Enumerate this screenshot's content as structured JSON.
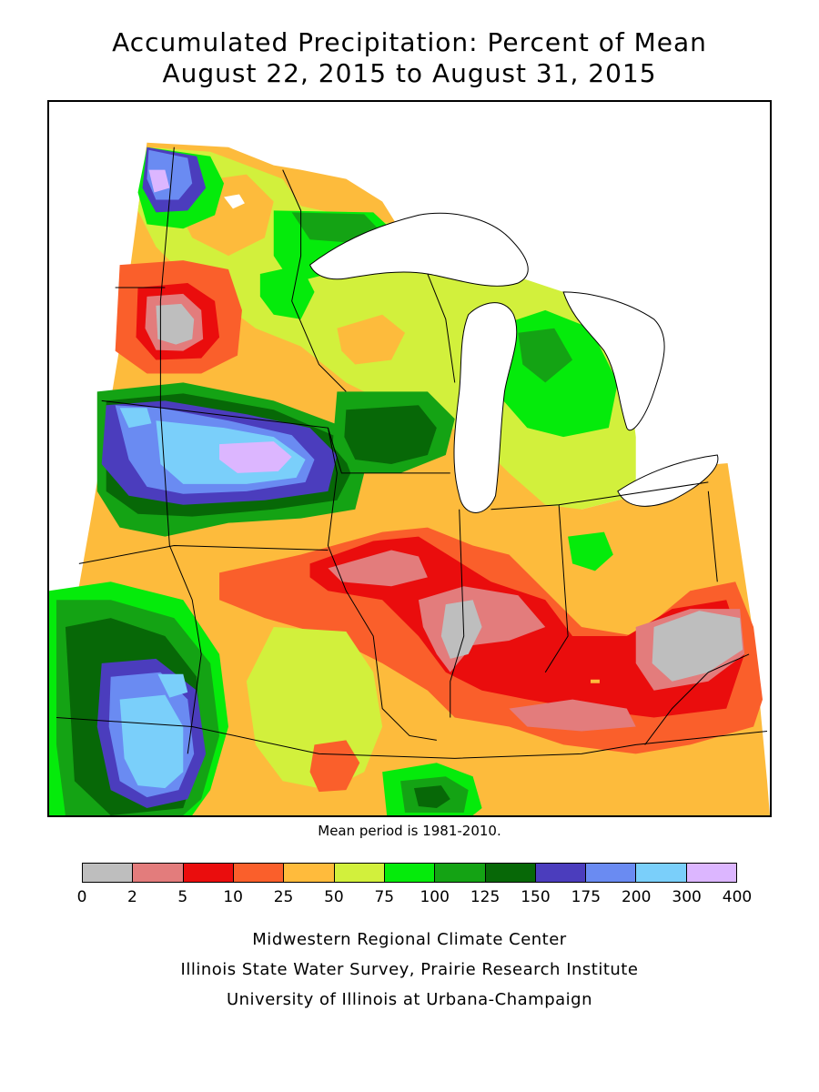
{
  "title": {
    "line1": "Accumulated Precipitation: Percent of Mean",
    "line2": "August 22, 2015 to August 31, 2015"
  },
  "mean_note": "Mean period is 1981-2010.",
  "legend": {
    "ticks": [
      "0",
      "2",
      "5",
      "10",
      "25",
      "50",
      "75",
      "100",
      "125",
      "150",
      "175",
      "200",
      "300",
      "400"
    ],
    "colors": [
      "#bebebe",
      "#e37c7c",
      "#ea0d0d",
      "#fa5f2b",
      "#ffbb3c",
      "#d2f03c",
      "#05eb0b",
      "#14a314",
      "#076807",
      "#4b3dbd",
      "#6a8bf2",
      "#7acffa",
      "#dcb6ff"
    ]
  },
  "credits": {
    "line1": "Midwestern Regional Climate Center",
    "line2": "Illinois State Water Survey, Prairie Research Institute",
    "line3": "University of Illinois at Urbana-Champaign"
  },
  "map": {
    "region": "Midwest United States",
    "background_color": "#fb9d35",
    "lake_color": "#ffffff"
  }
}
